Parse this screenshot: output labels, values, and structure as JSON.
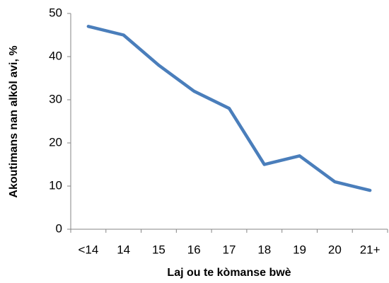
{
  "chart_data": {
    "type": "line",
    "x_label": "Laj ou te kòmanse bwè",
    "y_label": "Akoutimans nan alkòl avi, %",
    "categories": [
      "<14",
      "14",
      "15",
      "16",
      "17",
      "18",
      "19",
      "20",
      "21+"
    ],
    "series": [
      {
        "name": "Akoutimans nan alkòl avi, %",
        "color": "#4a7ebb",
        "values": [
          47,
          45,
          38,
          32,
          28,
          15,
          17,
          11,
          9
        ]
      }
    ],
    "ylim": [
      0,
      50
    ],
    "yticks": [
      0,
      10,
      20,
      30,
      40,
      50
    ],
    "grid": false
  }
}
